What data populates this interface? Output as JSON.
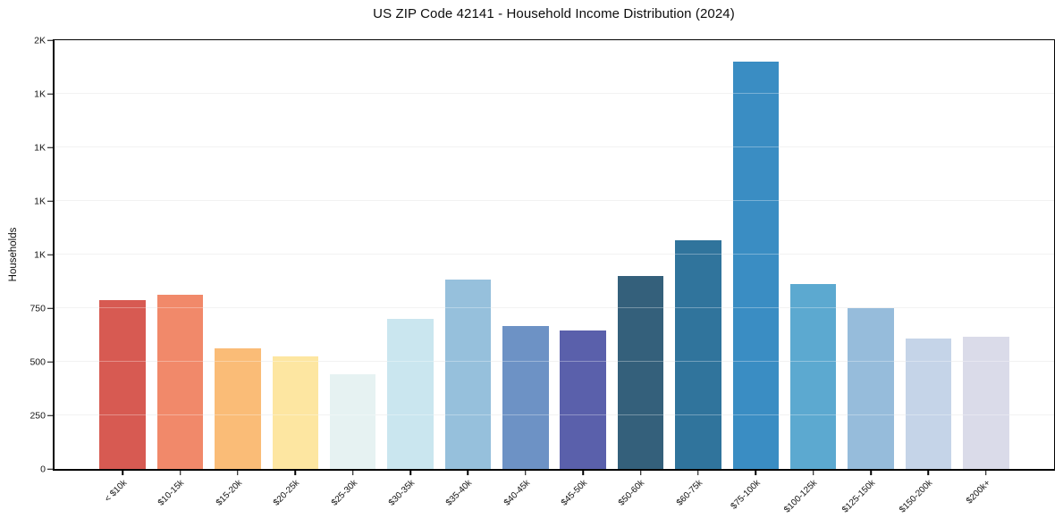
{
  "chart_data": {
    "type": "bar",
    "title": "US ZIP Code 42141 - Household Income Distribution (2024)",
    "xlabel": "",
    "ylabel": "Households",
    "ylim": [
      0,
      2000
    ],
    "grid": "horizontal-only, light gray, drawn over bars",
    "legend": "none",
    "frame": "full black box frame",
    "categories": [
      "< $10k",
      "$10-15k",
      "$15-20k",
      "$20-25k",
      "$25-30k",
      "$30-35k",
      "$35-40k",
      "$40-45k",
      "$45-50k",
      "$50-60k",
      "$60-75k",
      "$75-100k",
      "$100-125k",
      "$125-150k",
      "$150-200k",
      "$200k+"
    ],
    "values": [
      788,
      812,
      561,
      527,
      440,
      701,
      884,
      666,
      647,
      898,
      1066,
      1898,
      864,
      749,
      608,
      618
    ],
    "bar_colors": [
      "#d75a52",
      "#f1896a",
      "#fabc77",
      "#fde6a1",
      "#e6f2f2",
      "#cae6ef",
      "#96c0dc",
      "#6d92c5",
      "#5a60ab",
      "#34607b",
      "#30749c",
      "#3a8dc3",
      "#5ca9d0",
      "#96bcdb",
      "#c5d4e8",
      "#dadbe9"
    ],
    "yticks": [
      {
        "value": 0,
        "label": "0"
      },
      {
        "value": 250,
        "label": "250"
      },
      {
        "value": 500,
        "label": "500"
      },
      {
        "value": 750,
        "label": "750"
      },
      {
        "value": 1000,
        "label": "1K"
      },
      {
        "value": 1250,
        "label": "1K"
      },
      {
        "value": 1500,
        "label": "1K"
      },
      {
        "value": 1750,
        "label": "1K"
      },
      {
        "value": 2000,
        "label": "2K"
      }
    ],
    "xtick_label_rotation_deg": 45,
    "text_color": "#141414",
    "gridline_color": "#ececec",
    "background_color": "#ffffff"
  }
}
